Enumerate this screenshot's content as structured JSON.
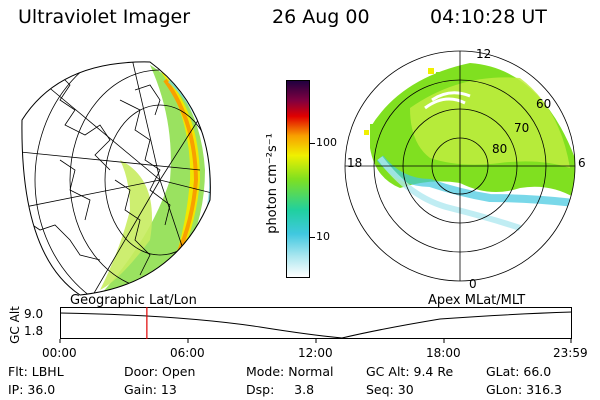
{
  "header": {
    "instrument": "Ultraviolet Imager",
    "date": "26 Aug 00",
    "time": "04:10:28 UT"
  },
  "geo_panel": {
    "label": "Geographic Lat/Lon"
  },
  "colorbar": {
    "unit_label": "photon cm⁻²s⁻¹",
    "ticks": [
      "100",
      "10"
    ],
    "scale": "log"
  },
  "polar_panel": {
    "label": "Apex MLat/MLT",
    "mlt_labels": {
      "top": "12",
      "left": "18",
      "right": "6",
      "bottom": "0"
    },
    "lat_labels": [
      "60",
      "70",
      "80"
    ]
  },
  "altitude_strip": {
    "y_label": "GC Alt",
    "y_ticks": [
      "9.0",
      "1.8"
    ],
    "time_ticks": [
      "00:00",
      "06:00",
      "12:00",
      "18:00",
      "23:59"
    ],
    "current_time_fraction": 0.17
  },
  "info": {
    "row1": {
      "flt": "Flt: LBHL",
      "door": "Door: Open",
      "mode": "Mode: Normal",
      "gc_alt": "GC Alt: 9.4 Re",
      "glat": "GLat:  66.0"
    },
    "row2": {
      "ip": "IP: 36.0",
      "gain": "Gain: 13",
      "dsp": "Dsp:     3.8",
      "seq": "Seq: 30",
      "glon": "GLon: 316.3"
    }
  },
  "colors": {
    "colorbar_stops": [
      "#ffffff",
      "#40c8e0",
      "#20d0a0",
      "#80e020",
      "#f0f000",
      "#f8a000",
      "#e00000",
      "#800040",
      "#200040"
    ],
    "time_marker": "#e00000"
  }
}
